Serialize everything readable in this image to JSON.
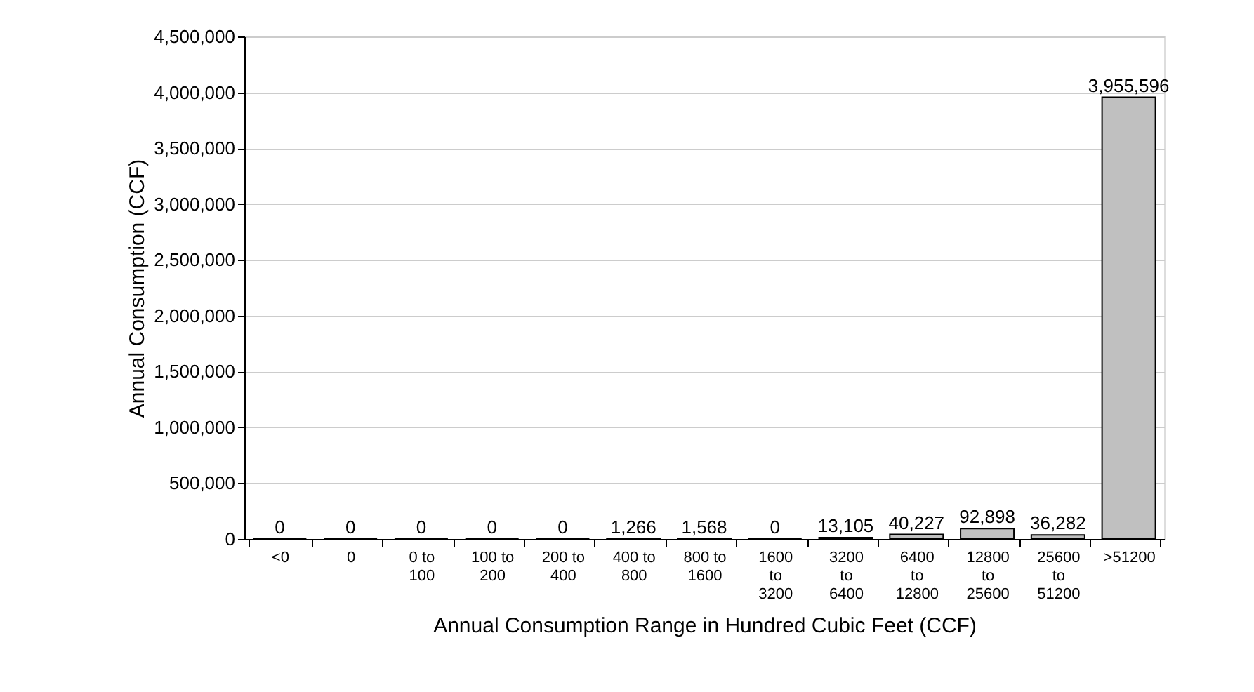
{
  "chart_data": {
    "type": "bar",
    "xlabel": "Annual Consumption Range in Hundred Cubic Feet (CCF)",
    "ylabel": "Annual Consumption (CCF)",
    "categories": [
      "<0",
      "0",
      "0 to 100",
      "100 to 200",
      "200 to 400",
      "400 to 800",
      "800 to 1600",
      "1600 to 3200",
      "3200 to 6400",
      "6400 to 12800",
      "12800 to 25600",
      "25600 to 51200",
      ">51200"
    ],
    "values": [
      0,
      0,
      0,
      0,
      0,
      1266,
      1568,
      0,
      13105,
      40227,
      92898,
      36282,
      3955596
    ],
    "value_labels": [
      "0",
      "0",
      "0",
      "0",
      "0",
      "1,266",
      "1,568",
      "0",
      "13,105",
      "40,227",
      "92,898",
      "36,282",
      "3,955,596"
    ],
    "color": "#c0c0c0",
    "ylim": [
      0,
      4500000
    ],
    "yticks": [
      0,
      {
        "value": 500000,
        "label": "500,000"
      },
      {
        "value": 1000000,
        "label": "1,000,000"
      },
      {
        "value": 1500000,
        "label": "1,500,000"
      },
      {
        "value": 2000000,
        "label": "2,000,000"
      },
      {
        "value": 2500000,
        "label": "2,500,000"
      },
      {
        "value": 3000000,
        "label": "3,000,000"
      },
      {
        "value": 3500000,
        "label": "3,500,000"
      },
      {
        "value": 4000000,
        "label": "4,000,000"
      },
      {
        "value": 4500000,
        "label": "4,500,000"
      }
    ],
    "grid": "y"
  }
}
